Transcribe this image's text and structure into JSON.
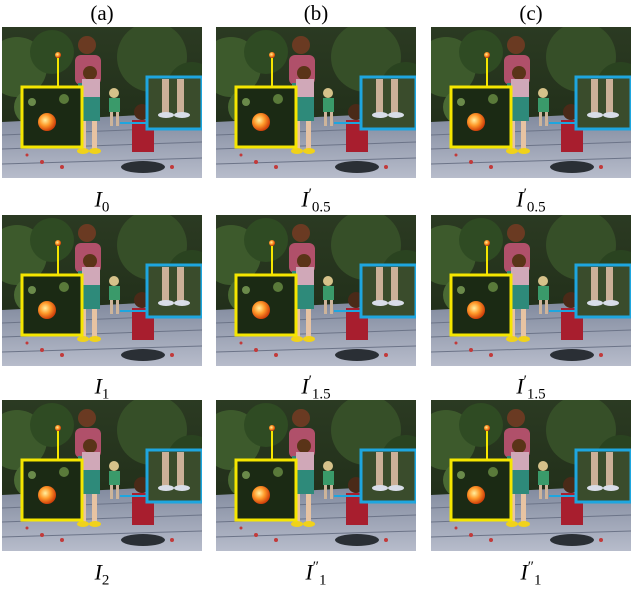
{
  "columns": [
    {
      "label": "(a)"
    },
    {
      "label": "(b)"
    },
    {
      "label": "(c)"
    }
  ],
  "rows": [
    {
      "cells": [
        {
          "symbol": "I",
          "sub": "0",
          "prime": ""
        },
        {
          "symbol": "I",
          "sub": "0.5",
          "prime": "′"
        },
        {
          "symbol": "I",
          "sub": "0.5",
          "prime": "′"
        }
      ]
    },
    {
      "cells": [
        {
          "symbol": "I",
          "sub": "1",
          "prime": ""
        },
        {
          "symbol": "I",
          "sub": "1.5",
          "prime": "′"
        },
        {
          "symbol": "I",
          "sub": "1.5",
          "prime": "′"
        }
      ]
    },
    {
      "cells": [
        {
          "symbol": "I",
          "sub": "2",
          "prime": ""
        },
        {
          "symbol": "I",
          "sub": "1",
          "prime": "″"
        },
        {
          "symbol": "I",
          "sub": "1",
          "prime": "″"
        }
      ]
    }
  ],
  "colors": {
    "zoom_box_ball": "#f5e600",
    "zoom_box_legs": "#1ea6df",
    "ball": "#ff7a1a",
    "deck": "#9aa3b8",
    "foliage": "#2d4a24"
  }
}
